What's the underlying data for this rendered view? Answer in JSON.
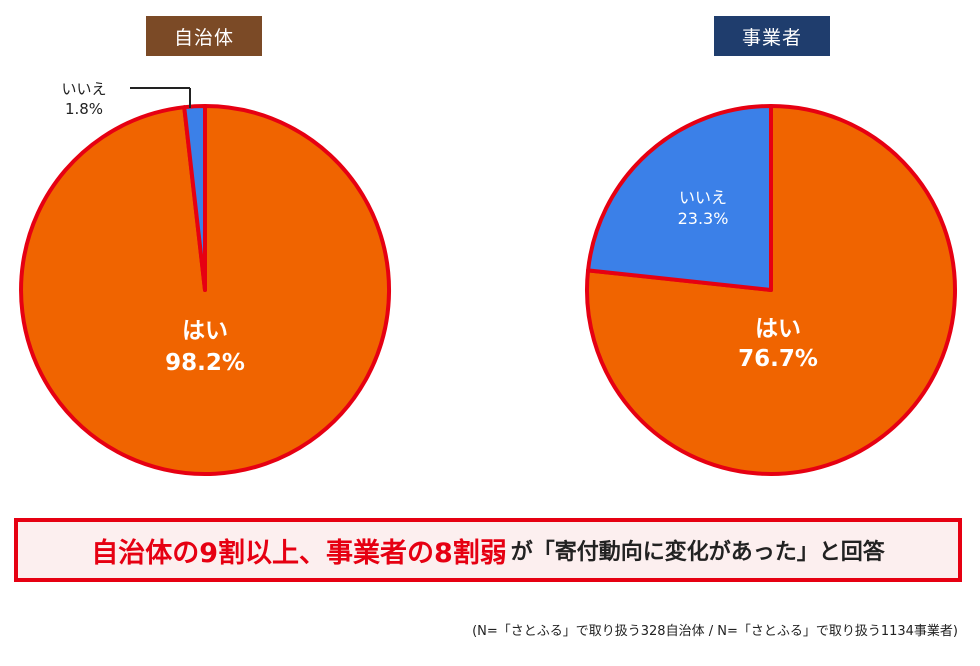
{
  "panels": {
    "local": {
      "label": "自治体",
      "color": "#7b4a26"
    },
    "business": {
      "label": "事業者",
      "color": "#1f3d6d"
    }
  },
  "colors": {
    "yes": "#f06400",
    "no": "#3b80e8",
    "border": "#e60012"
  },
  "chart_data": [
    {
      "type": "pie",
      "title": "自治体",
      "slices": [
        {
          "label": "はい",
          "value": 98.2,
          "value_label": "98.2%"
        },
        {
          "label": "いいえ",
          "value": 1.8,
          "value_label": "1.8%"
        }
      ]
    },
    {
      "type": "pie",
      "title": "事業者",
      "slices": [
        {
          "label": "はい",
          "value": 76.7,
          "value_label": "76.7%"
        },
        {
          "label": "いいえ",
          "value": 23.3,
          "value_label": "23.3%"
        }
      ]
    }
  ],
  "callout": {
    "highlight": "自治体の9割以上、事業者の8割弱",
    "text": "が「寄付動向に変化があった」と回答"
  },
  "footnote": "(N=「さとふる」で取り扱う328自治体 / N=「さとふる」で取り扱う1134事業者)"
}
